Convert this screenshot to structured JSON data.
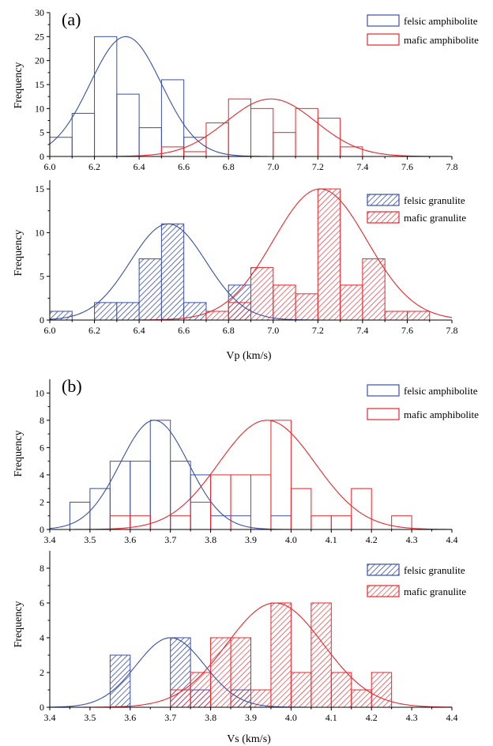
{
  "figure": {
    "colors": {
      "blue": "#3a4fa6",
      "red": "#e8262c",
      "axis": "#000000"
    }
  },
  "chart_data": [
    {
      "id": "a-top",
      "type": "bar",
      "panel_label": "(a)",
      "ylabel": "Frequency",
      "xlabel": "",
      "xlim": [
        6.0,
        7.8
      ],
      "ylim": [
        0,
        30
      ],
      "xticks": [
        "6.0",
        "6.2",
        "6.4",
        "6.6",
        "6.8",
        "7.0",
        "7.2",
        "7.4",
        "7.6",
        "7.8"
      ],
      "yticks": [
        "0",
        "5",
        "10",
        "15",
        "20",
        "25",
        "30"
      ],
      "bin_width": 0.1,
      "series": [
        {
          "name": "felsic amphibolite",
          "color": "#3a4fa6",
          "hatch": false,
          "bins": [
            [
              6.0,
              4
            ],
            [
              6.1,
              9
            ],
            [
              6.2,
              25
            ],
            [
              6.3,
              13
            ],
            [
              6.4,
              6
            ],
            [
              6.5,
              16
            ],
            [
              6.6,
              4
            ]
          ],
          "fit": {
            "mean": 6.34,
            "peak": 25,
            "sd": 0.16
          }
        },
        {
          "name": "mafic amphibolite",
          "color": "#e8262c",
          "hatch": false,
          "bins": [
            [
              6.5,
              2
            ],
            [
              6.6,
              1
            ],
            [
              6.7,
              7
            ],
            [
              6.8,
              12
            ],
            [
              6.9,
              10
            ],
            [
              7.0,
              5
            ],
            [
              7.1,
              10
            ],
            [
              7.2,
              8
            ],
            [
              7.3,
              2
            ]
          ],
          "fit": {
            "mean": 6.99,
            "peak": 12,
            "sd": 0.2
          }
        }
      ],
      "legend_position": "top-right"
    },
    {
      "id": "a-bottom",
      "type": "bar",
      "panel_label": "",
      "ylabel": "Frequency",
      "xlabel": "Vp (km/s)",
      "xlim": [
        6.0,
        7.8
      ],
      "ylim": [
        0,
        16
      ],
      "xticks": [
        "6.0",
        "6.2",
        "6.4",
        "6.6",
        "6.8",
        "7.0",
        "7.2",
        "7.4",
        "7.6",
        "7.8"
      ],
      "yticks": [
        "0",
        "5",
        "10",
        "15"
      ],
      "bin_width": 0.1,
      "series": [
        {
          "name": "felsic granulite",
          "color": "#3a4fa6",
          "hatch": true,
          "bins": [
            [
              6.0,
              1
            ],
            [
              6.2,
              2
            ],
            [
              6.3,
              2
            ],
            [
              6.4,
              7
            ],
            [
              6.5,
              11
            ],
            [
              6.6,
              2
            ],
            [
              6.8,
              4
            ]
          ],
          "fit": {
            "mean": 6.53,
            "peak": 11,
            "sd": 0.17
          }
        },
        {
          "name": "mafic granulite",
          "color": "#e8262c",
          "hatch": true,
          "bins": [
            [
              6.7,
              1
            ],
            [
              6.8,
              2
            ],
            [
              6.9,
              6
            ],
            [
              7.0,
              4
            ],
            [
              7.1,
              3
            ],
            [
              7.2,
              15
            ],
            [
              7.3,
              4
            ],
            [
              7.4,
              7
            ],
            [
              7.5,
              1
            ],
            [
              7.6,
              1
            ]
          ],
          "fit": {
            "mean": 7.21,
            "peak": 15,
            "sd": 0.21
          }
        }
      ],
      "legend_position": "top-right"
    },
    {
      "id": "b-top",
      "type": "bar",
      "panel_label": "(b)",
      "ylabel": "Frequency",
      "xlabel": "",
      "xlim": [
        3.4,
        4.4
      ],
      "ylim": [
        0,
        11
      ],
      "xticks": [
        "3.4",
        "3.5",
        "3.6",
        "3.7",
        "3.8",
        "3.9",
        "4.0",
        "4.1",
        "4.2",
        "4.3",
        "4.4"
      ],
      "yticks": [
        "0",
        "2",
        "4",
        "6",
        "8",
        "10"
      ],
      "bin_width": 0.05,
      "series": [
        {
          "name": "felsic amphibolite",
          "color": "#3a4fa6",
          "hatch": false,
          "bins": [
            [
              3.45,
              2
            ],
            [
              3.5,
              3
            ],
            [
              3.55,
              5
            ],
            [
              3.6,
              5
            ],
            [
              3.65,
              8
            ],
            [
              3.7,
              5
            ],
            [
              3.75,
              4
            ],
            [
              3.8,
              1
            ],
            [
              3.85,
              1
            ],
            [
              3.95,
              1
            ]
          ],
          "fit": {
            "mean": 3.66,
            "peak": 8,
            "sd": 0.085
          }
        },
        {
          "name": "mafic amphibolite",
          "color": "#e8262c",
          "hatch": false,
          "bins": [
            [
              3.55,
              1
            ],
            [
              3.6,
              1
            ],
            [
              3.7,
              1
            ],
            [
              3.75,
              2
            ],
            [
              3.8,
              4
            ],
            [
              3.85,
              4
            ],
            [
              3.9,
              4
            ],
            [
              3.95,
              8
            ],
            [
              4.0,
              3
            ],
            [
              4.05,
              1
            ],
            [
              4.1,
              1
            ],
            [
              4.15,
              3
            ],
            [
              4.25,
              1
            ]
          ],
          "fit": {
            "mean": 3.94,
            "peak": 8,
            "sd": 0.12
          }
        }
      ],
      "legend_position": "top-right"
    },
    {
      "id": "b-bottom",
      "type": "bar",
      "panel_label": "",
      "ylabel": "Frequency",
      "xlabel": "Vs (km/s)",
      "xlim": [
        3.4,
        4.4
      ],
      "ylim": [
        0,
        9
      ],
      "xticks": [
        "3.4",
        "3.5",
        "3.6",
        "3.7",
        "3.8",
        "3.9",
        "4.0",
        "4.1",
        "4.2",
        "4.3",
        "4.4"
      ],
      "yticks": [
        "0",
        "2",
        "4",
        "6",
        "8"
      ],
      "bin_width": 0.05,
      "series": [
        {
          "name": "felsic granulite",
          "color": "#3a4fa6",
          "hatch": true,
          "bins": [
            [
              3.55,
              3
            ],
            [
              3.7,
              4
            ],
            [
              3.75,
              1
            ],
            [
              3.85,
              1
            ]
          ],
          "fit": {
            "mean": 3.7,
            "peak": 4,
            "sd": 0.085
          }
        },
        {
          "name": "mafic granulite",
          "color": "#e8262c",
          "hatch": true,
          "bins": [
            [
              3.7,
              1
            ],
            [
              3.75,
              2
            ],
            [
              3.8,
              4
            ],
            [
              3.85,
              4
            ],
            [
              3.9,
              1
            ],
            [
              3.95,
              6
            ],
            [
              4.0,
              2
            ],
            [
              4.05,
              6
            ],
            [
              4.1,
              2
            ],
            [
              4.15,
              1
            ],
            [
              4.2,
              2
            ]
          ],
          "fit": {
            "mean": 3.96,
            "peak": 6,
            "sd": 0.12
          }
        }
      ],
      "legend_position": "top-right"
    }
  ]
}
